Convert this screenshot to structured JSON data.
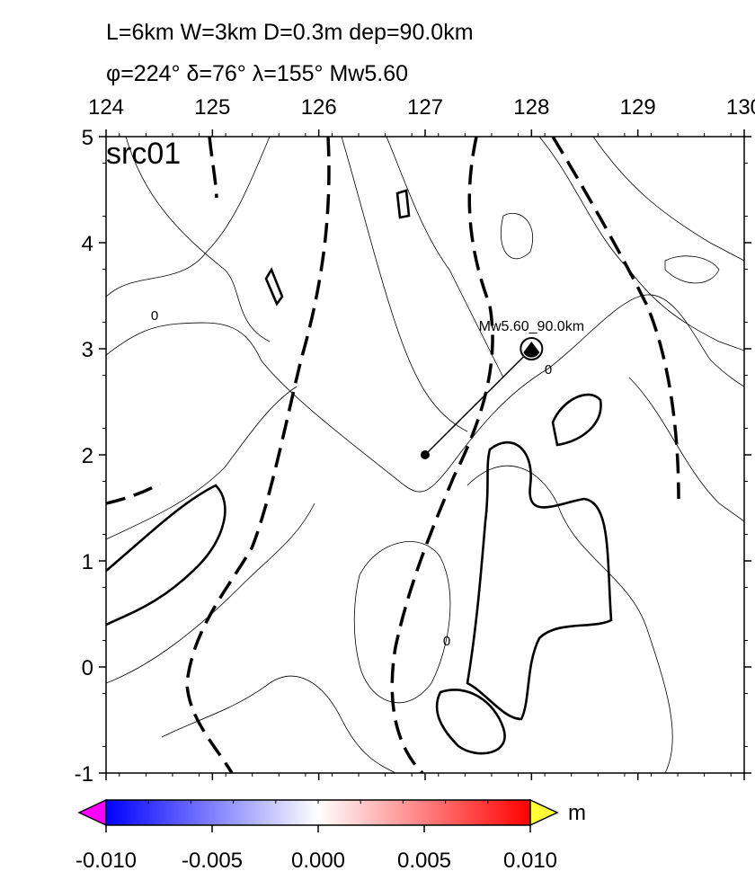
{
  "header": {
    "line1": "L=6km W=3km D=0.3m dep=90.0km",
    "line2": "φ=224° δ=76° λ=155° Mw5.60"
  },
  "map": {
    "label": "src01",
    "xlim": [
      124,
      130
    ],
    "ylim": [
      -1,
      5
    ],
    "xticks": [
      124,
      125,
      126,
      127,
      128,
      129,
      130
    ],
    "yticks": [
      5,
      4,
      3,
      2,
      1,
      0,
      -1
    ],
    "epicenter": {
      "x": 127,
      "y": 2
    },
    "mechanism": {
      "x": 128,
      "y": 3,
      "label": "Mw5.60_90.0km"
    },
    "contour_labels": [
      "0",
      "0",
      "0"
    ]
  },
  "colorbar": {
    "lim": [
      -0.01,
      0.01
    ],
    "ticks": [
      {
        "value": -0.01,
        "label": "-0.010"
      },
      {
        "value": -0.005,
        "label": "-0.005"
      },
      {
        "value": 0,
        "label": "0.000"
      },
      {
        "value": 0.005,
        "label": "0.005"
      },
      {
        "value": 0.01,
        "label": "0.010"
      }
    ],
    "unit": "m"
  }
}
